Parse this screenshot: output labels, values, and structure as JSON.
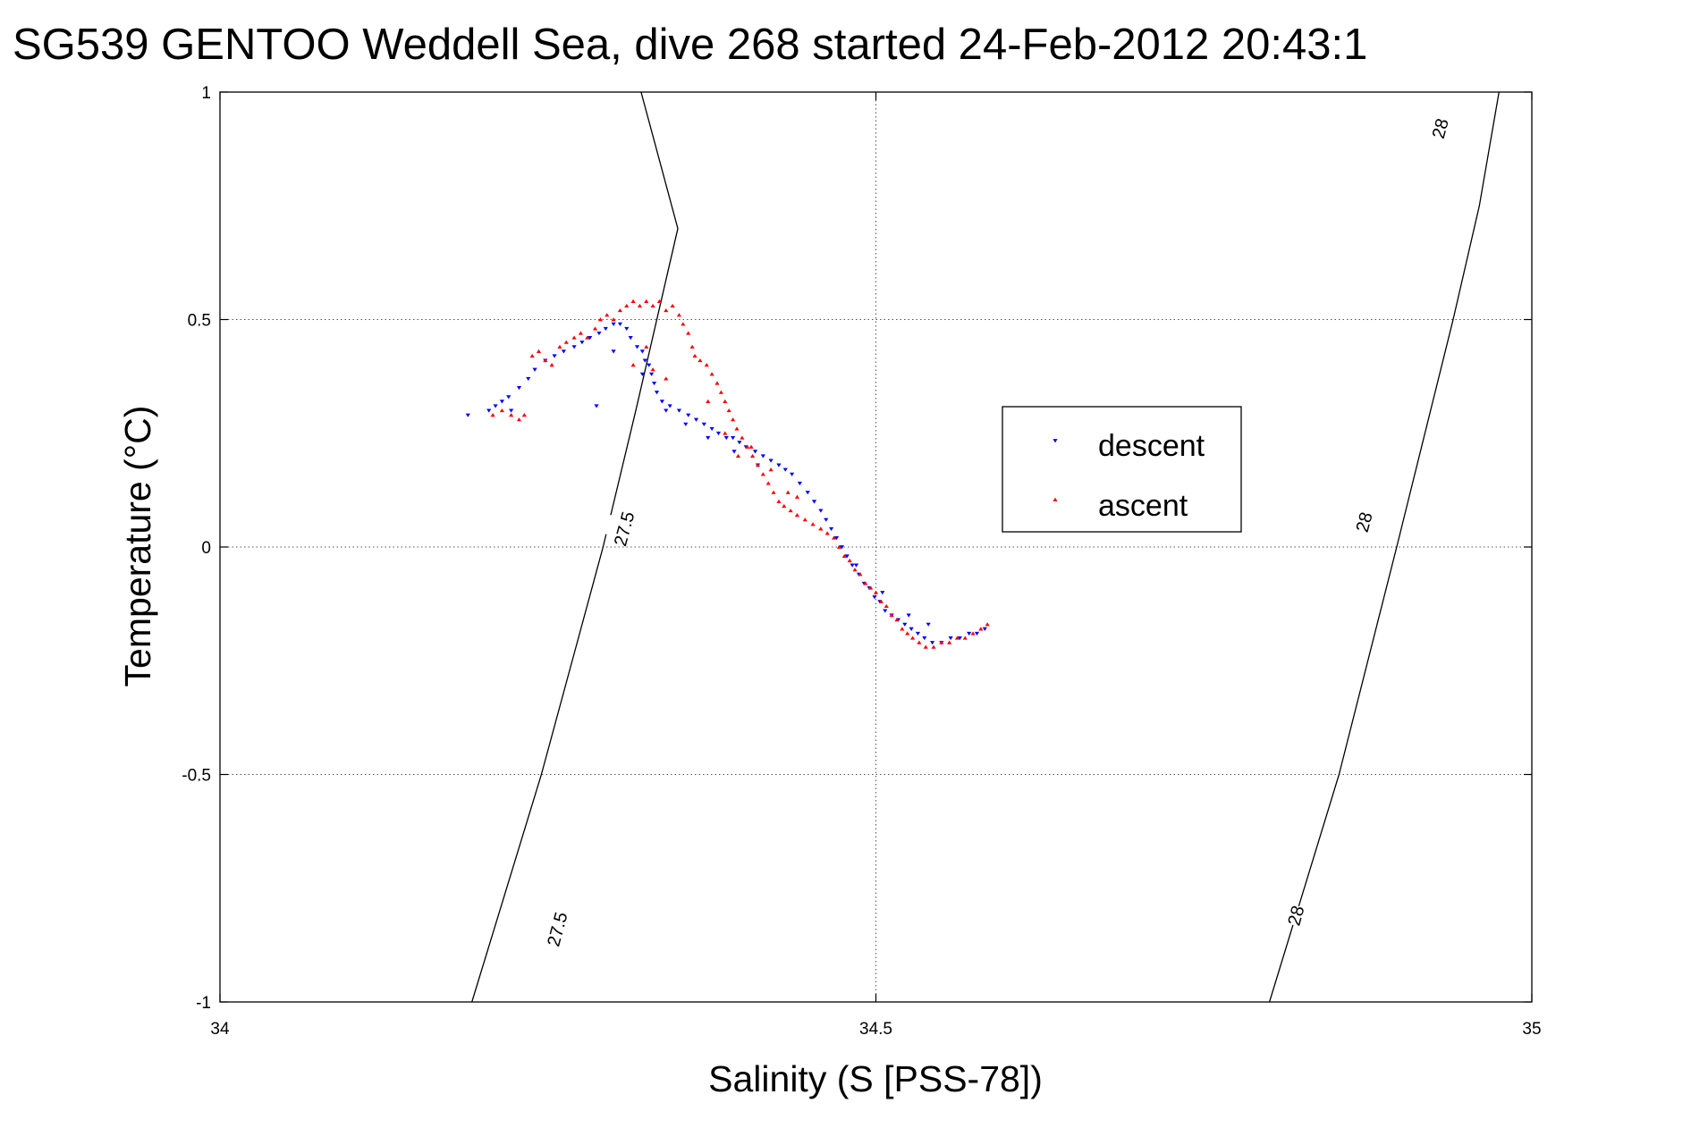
{
  "chart_data": {
    "type": "scatter",
    "title": "SG539 GENTOO Weddell Sea, dive 268 started 24-Feb-2012 20:43:1",
    "xlabel": "Salinity (S [PSS-78])",
    "ylabel": "Temperature (°C)",
    "xlim": [
      34,
      35
    ],
    "ylim": [
      -1,
      1
    ],
    "xticks": [
      34,
      34.5,
      35
    ],
    "xtick_labels": [
      "34",
      "34.5",
      "35"
    ],
    "yticks": [
      1,
      0.5,
      0,
      -0.5,
      -1
    ],
    "ytick_labels": [
      "1",
      "0.5",
      "0",
      "-0.5",
      "-1"
    ],
    "grid": true,
    "legend": {
      "placement": "center-right",
      "entries": [
        "descent",
        "ascent"
      ]
    },
    "isopycnals": [
      {
        "label": "27.5",
        "color": "#000000",
        "points": [
          [
            34.192,
            -1.0
          ],
          [
            34.245,
            -0.5
          ],
          [
            34.292,
            0.0
          ],
          [
            34.317,
            0.3
          ],
          [
            34.349,
            0.7
          ],
          [
            34.321,
            1.0
          ]
        ]
      },
      {
        "label": "28",
        "color": "#000000",
        "points": [
          [
            34.8,
            -1.0
          ],
          [
            34.853,
            -0.5
          ],
          [
            34.897,
            0.0
          ],
          [
            34.94,
            0.5
          ],
          [
            34.96,
            0.75
          ],
          [
            34.975,
            1.0
          ]
        ]
      }
    ],
    "isopycnal_label_positions": [
      {
        "label": "27.5",
        "x": 34.257,
        "y": -0.84
      },
      {
        "label": "27.5",
        "x": 34.308,
        "y": 0.04
      },
      {
        "label": "28",
        "x": 34.82,
        "y": -0.81
      },
      {
        "label": "28",
        "x": 34.872,
        "y": 0.055
      },
      {
        "label": "28",
        "x": 34.93,
        "y": 0.92
      }
    ],
    "series": [
      {
        "name": "descent",
        "color": "#0000ff",
        "marker": "triangle-down",
        "points": [
          [
            34.189,
            0.29
          ],
          [
            34.205,
            0.3
          ],
          [
            34.21,
            0.31
          ],
          [
            34.215,
            0.32
          ],
          [
            34.22,
            0.33
          ],
          [
            34.222,
            0.3
          ],
          [
            34.228,
            0.35
          ],
          [
            34.235,
            0.37
          ],
          [
            34.24,
            0.39
          ],
          [
            34.248,
            0.41
          ],
          [
            34.255,
            0.42
          ],
          [
            34.262,
            0.43
          ],
          [
            34.27,
            0.44
          ],
          [
            34.276,
            0.45
          ],
          [
            34.282,
            0.46
          ],
          [
            34.289,
            0.47
          ],
          [
            34.294,
            0.48
          ],
          [
            34.3,
            0.49
          ],
          [
            34.305,
            0.49
          ],
          [
            34.31,
            0.48
          ],
          [
            34.313,
            0.46
          ],
          [
            34.318,
            0.44
          ],
          [
            34.322,
            0.43
          ],
          [
            34.324,
            0.41
          ],
          [
            34.327,
            0.4
          ],
          [
            34.329,
            0.38
          ],
          [
            34.331,
            0.36
          ],
          [
            34.333,
            0.34
          ],
          [
            34.337,
            0.32
          ],
          [
            34.343,
            0.31
          ],
          [
            34.35,
            0.3
          ],
          [
            34.357,
            0.29
          ],
          [
            34.363,
            0.28
          ],
          [
            34.369,
            0.27
          ],
          [
            34.375,
            0.26
          ],
          [
            34.38,
            0.25
          ],
          [
            34.386,
            0.24
          ],
          [
            34.391,
            0.24
          ],
          [
            34.396,
            0.23
          ],
          [
            34.401,
            0.22
          ],
          [
            34.408,
            0.21
          ],
          [
            34.414,
            0.2
          ],
          [
            34.42,
            0.19
          ],
          [
            34.426,
            0.18
          ],
          [
            34.431,
            0.17
          ],
          [
            34.436,
            0.16
          ],
          [
            34.442,
            0.14
          ],
          [
            34.448,
            0.12
          ],
          [
            34.453,
            0.1
          ],
          [
            34.458,
            0.08
          ],
          [
            34.462,
            0.06
          ],
          [
            34.466,
            0.04
          ],
          [
            34.47,
            0.02
          ],
          [
            34.474,
            0.0
          ],
          [
            34.478,
            -0.02
          ],
          [
            34.482,
            -0.04
          ],
          [
            34.487,
            -0.06
          ],
          [
            34.491,
            -0.08
          ],
          [
            34.495,
            -0.09
          ],
          [
            34.499,
            -0.11
          ],
          [
            34.503,
            -0.12
          ],
          [
            34.507,
            -0.14
          ],
          [
            34.512,
            -0.15
          ],
          [
            34.517,
            -0.16
          ],
          [
            34.522,
            -0.17
          ],
          [
            34.527,
            -0.18
          ],
          [
            34.532,
            -0.19
          ],
          [
            34.537,
            -0.2
          ],
          [
            34.543,
            -0.21
          ],
          [
            34.55,
            -0.21
          ],
          [
            34.557,
            -0.2
          ],
          [
            34.564,
            -0.2
          ],
          [
            34.571,
            -0.19
          ],
          [
            34.577,
            -0.19
          ],
          [
            34.583,
            -0.18
          ],
          [
            34.287,
            0.31
          ],
          [
            34.3,
            0.43
          ],
          [
            34.322,
            0.38
          ],
          [
            34.34,
            0.3
          ],
          [
            34.355,
            0.27
          ],
          [
            34.372,
            0.24
          ],
          [
            34.392,
            0.21
          ],
          [
            34.41,
            0.18
          ],
          [
            34.485,
            -0.04
          ],
          [
            34.505,
            -0.1
          ],
          [
            34.525,
            -0.15
          ],
          [
            34.54,
            -0.17
          ]
        ]
      },
      {
        "name": "ascent",
        "color": "#ff0000",
        "marker": "triangle-up",
        "points": [
          [
            34.208,
            0.29
          ],
          [
            34.215,
            0.3
          ],
          [
            34.222,
            0.29
          ],
          [
            34.228,
            0.28
          ],
          [
            34.232,
            0.29
          ],
          [
            34.238,
            0.42
          ],
          [
            34.243,
            0.43
          ],
          [
            34.248,
            0.41
          ],
          [
            34.253,
            0.4
          ],
          [
            34.259,
            0.44
          ],
          [
            34.264,
            0.45
          ],
          [
            34.27,
            0.46
          ],
          [
            34.275,
            0.47
          ],
          [
            34.28,
            0.46
          ],
          [
            34.286,
            0.48
          ],
          [
            34.29,
            0.5
          ],
          [
            34.295,
            0.51
          ],
          [
            34.3,
            0.5
          ],
          [
            34.305,
            0.52
          ],
          [
            34.31,
            0.53
          ],
          [
            34.315,
            0.54
          ],
          [
            34.32,
            0.53
          ],
          [
            34.325,
            0.54
          ],
          [
            34.33,
            0.53
          ],
          [
            34.335,
            0.54
          ],
          [
            34.34,
            0.52
          ],
          [
            34.345,
            0.53
          ],
          [
            34.35,
            0.51
          ],
          [
            34.353,
            0.49
          ],
          [
            34.357,
            0.47
          ],
          [
            34.36,
            0.44
          ],
          [
            34.362,
            0.42
          ],
          [
            34.366,
            0.41
          ],
          [
            34.371,
            0.4
          ],
          [
            34.375,
            0.38
          ],
          [
            34.379,
            0.36
          ],
          [
            34.382,
            0.34
          ],
          [
            34.385,
            0.32
          ],
          [
            34.388,
            0.3
          ],
          [
            34.391,
            0.28
          ],
          [
            34.394,
            0.26
          ],
          [
            34.398,
            0.24
          ],
          [
            34.402,
            0.22
          ],
          [
            34.406,
            0.2
          ],
          [
            34.41,
            0.18
          ],
          [
            34.414,
            0.16
          ],
          [
            34.418,
            0.14
          ],
          [
            34.422,
            0.12
          ],
          [
            34.426,
            0.1
          ],
          [
            34.43,
            0.09
          ],
          [
            34.435,
            0.08
          ],
          [
            34.44,
            0.07
          ],
          [
            34.446,
            0.06
          ],
          [
            34.452,
            0.05
          ],
          [
            34.458,
            0.04
          ],
          [
            34.463,
            0.03
          ],
          [
            34.468,
            0.02
          ],
          [
            34.472,
            0.0
          ],
          [
            34.476,
            -0.02
          ],
          [
            34.48,
            -0.03
          ],
          [
            34.484,
            -0.05
          ],
          [
            34.488,
            -0.06
          ],
          [
            34.492,
            -0.08
          ],
          [
            34.496,
            -0.09
          ],
          [
            34.5,
            -0.1
          ],
          [
            34.504,
            -0.12
          ],
          [
            34.508,
            -0.13
          ],
          [
            34.512,
            -0.15
          ],
          [
            34.516,
            -0.16
          ],
          [
            34.52,
            -0.18
          ],
          [
            34.524,
            -0.19
          ],
          [
            34.528,
            -0.2
          ],
          [
            34.533,
            -0.21
          ],
          [
            34.538,
            -0.22
          ],
          [
            34.544,
            -0.22
          ],
          [
            34.55,
            -0.21
          ],
          [
            34.556,
            -0.21
          ],
          [
            34.562,
            -0.2
          ],
          [
            34.568,
            -0.2
          ],
          [
            34.574,
            -0.19
          ],
          [
            34.58,
            -0.18
          ],
          [
            34.585,
            -0.17
          ],
          [
            34.33,
            0.39
          ],
          [
            34.34,
            0.37
          ],
          [
            34.315,
            0.4
          ],
          [
            34.325,
            0.44
          ],
          [
            34.372,
            0.32
          ],
          [
            34.385,
            0.25
          ],
          [
            34.395,
            0.2
          ],
          [
            34.405,
            0.22
          ],
          [
            34.42,
            0.17
          ],
          [
            34.433,
            0.12
          ],
          [
            34.44,
            0.11
          ]
        ]
      }
    ]
  }
}
